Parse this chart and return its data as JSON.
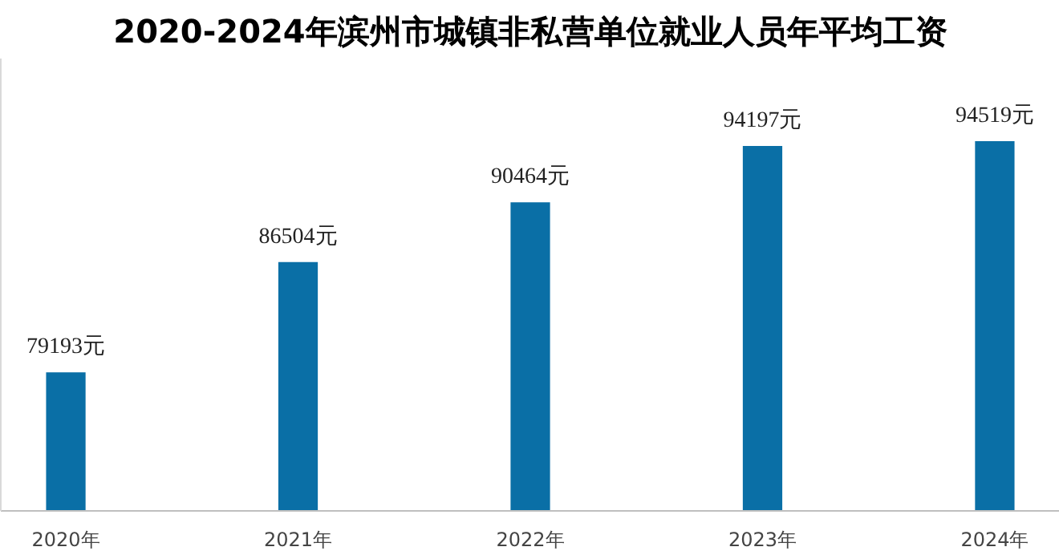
{
  "chart_data": {
    "type": "bar",
    "title": "2020-2024年滨州市城镇非私营单位就业人员年平均工资",
    "categories": [
      "2020年",
      "2021年",
      "2022年",
      "2023年",
      "2024年"
    ],
    "values": [
      79193,
      86504,
      90464,
      94197,
      94519
    ],
    "value_labels": [
      "79193元",
      "86504元",
      "90464元",
      "94197元",
      "94519元"
    ],
    "color": "#0a6fa6",
    "ylim": [
      70000,
      100000
    ],
    "tick_labels": "x",
    "grid": false
  }
}
